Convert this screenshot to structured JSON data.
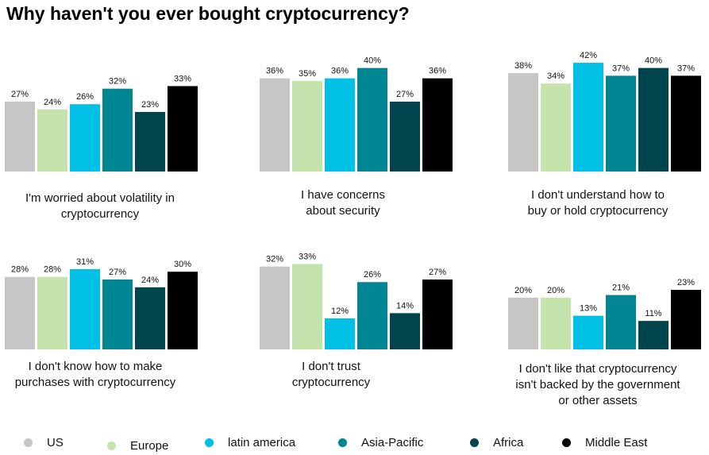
{
  "title": "Why haven't you ever bought cryptocurrency?",
  "colors": {
    "US": "#c6c6c6",
    "Europe": "#c5e3ad",
    "latin america": "#00c0e6",
    "Asia-Pacific": "#008693",
    "Africa": "#00444d",
    "Middle East": "#000000"
  },
  "legend": [
    "US",
    "Europe",
    "latin america",
    "Asia-Pacific",
    "Africa",
    "Middle East"
  ],
  "chart_data": [
    {
      "type": "bar",
      "title": "I'm worried about volatility in cryptocurrency",
      "label_lines": [
        "I'm worried about volatility in",
        "cryptocurrency"
      ],
      "categories": [
        "US",
        "Europe",
        "latin america",
        "Asia-Pacific",
        "Africa",
        "Middle East"
      ],
      "values": [
        27,
        24,
        26,
        32,
        23,
        33
      ],
      "value_labels": [
        "27%",
        "24%",
        "26%",
        "32%",
        "23%",
        "33%"
      ],
      "unit": "%",
      "ylim": [
        0,
        42
      ]
    },
    {
      "type": "bar",
      "title": "I have concerns about security",
      "label_lines": [
        "I have concerns",
        "about security"
      ],
      "categories": [
        "US",
        "Europe",
        "latin america",
        "Asia-Pacific",
        "Africa",
        "Middle East"
      ],
      "values": [
        36,
        35,
        36,
        40,
        27,
        36
      ],
      "value_labels": [
        "36%",
        "35%",
        "36%",
        "40%",
        "27%",
        "36%"
      ],
      "unit": "%",
      "ylim": [
        0,
        42
      ]
    },
    {
      "type": "bar",
      "title": "I don't understand how to buy or hold cryptocurrency",
      "label_lines": [
        "I don't understand how to",
        "buy or hold cryptocurrency"
      ],
      "categories": [
        "US",
        "Europe",
        "latin america",
        "Asia-Pacific",
        "Africa",
        "Middle East"
      ],
      "values": [
        38,
        34,
        42,
        37,
        40,
        37
      ],
      "value_labels": [
        "38%",
        "34%",
        "42%",
        "37%",
        "40%",
        "37%"
      ],
      "unit": "%",
      "ylim": [
        0,
        42
      ]
    },
    {
      "type": "bar",
      "title": "I don't know how to make purchases with cryptocurrency",
      "label_lines": [
        "I don't know how to make",
        "purchases with cryptocurrency"
      ],
      "categories": [
        "US",
        "Europe",
        "latin america",
        "Asia-Pacific",
        "Africa",
        "Middle East"
      ],
      "values": [
        28,
        28,
        31,
        27,
        24,
        30
      ],
      "value_labels": [
        "28%",
        "28%",
        "31%",
        "27%",
        "24%",
        "30%"
      ],
      "unit": "%",
      "ylim": [
        0,
        42
      ]
    },
    {
      "type": "bar",
      "title": "I don't trust cryptocurrency",
      "label_lines": [
        "I don't trust",
        "cryptocurrency"
      ],
      "categories": [
        "US",
        "Europe",
        "latin america",
        "Asia-Pacific",
        "Africa",
        "Middle East"
      ],
      "values": [
        32,
        33,
        12,
        26,
        14,
        27
      ],
      "value_labels": [
        "32%",
        "33%",
        "12%",
        "26%",
        "14%",
        "27%"
      ],
      "unit": "%",
      "ylim": [
        0,
        42
      ]
    },
    {
      "type": "bar",
      "title": "I don't like that cryptocurrency isn't backed by the government or other assets",
      "label_lines": [
        "I don't like that cryptocurrency",
        "isn't backed by the government",
        "or other assets"
      ],
      "categories": [
        "US",
        "Europe",
        "latin america",
        "Asia-Pacific",
        "Africa",
        "Middle East"
      ],
      "values": [
        20,
        20,
        13,
        21,
        11,
        23
      ],
      "value_labels": [
        "20%",
        "20%",
        "13%",
        "21%",
        "11%",
        "23%"
      ],
      "unit": "%",
      "ylim": [
        0,
        42
      ]
    }
  ]
}
